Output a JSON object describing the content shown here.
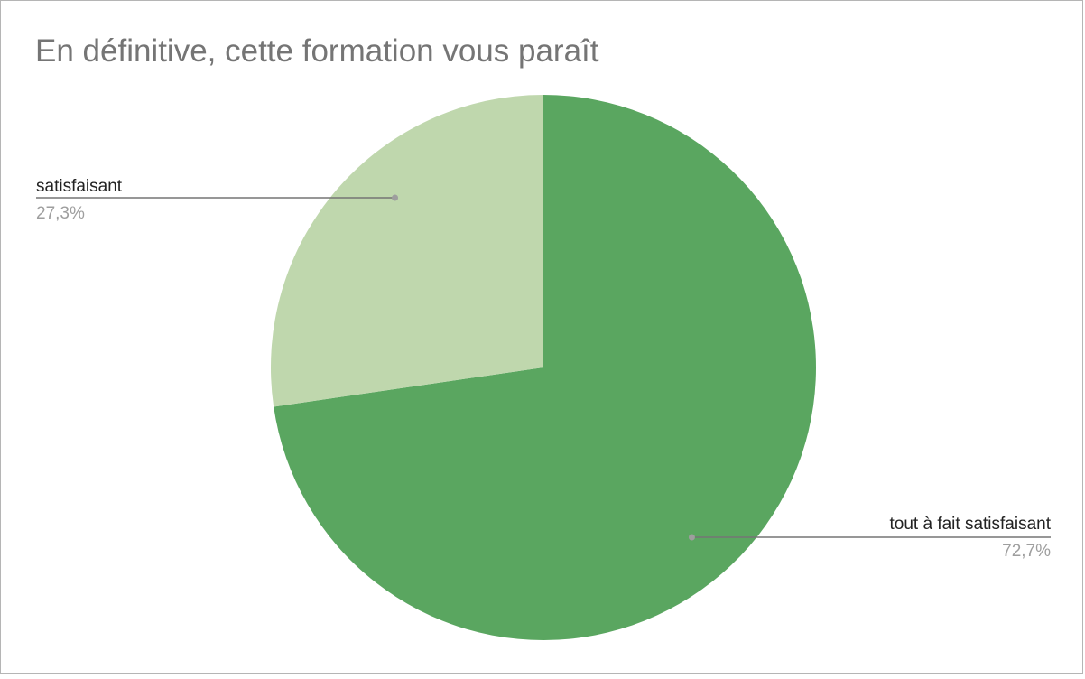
{
  "chart_data": {
    "type": "pie",
    "title": "En définitive, cette formation vous paraît",
    "slices": [
      {
        "label": "tout à fait satisfaisant",
        "value": 72.7,
        "display": "72,7%",
        "color": "#5aa660"
      },
      {
        "label": "satisfaisant",
        "value": 27.3,
        "display": "27,3%",
        "color": "#bfd7ad"
      }
    ],
    "legend": "none"
  }
}
